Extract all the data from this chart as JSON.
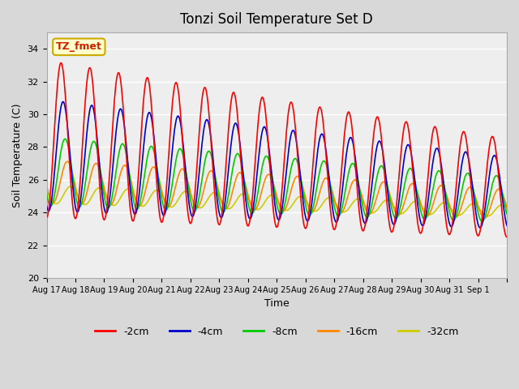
{
  "title": "Tonzi Soil Temperature Set D",
  "xlabel": "Time",
  "ylabel": "Soil Temperature (C)",
  "ylim": [
    20,
    35
  ],
  "yticks": [
    20,
    22,
    24,
    26,
    28,
    30,
    32,
    34
  ],
  "fig_bg_color": "#d8d8d8",
  "plot_bg_color": "#eeeeee",
  "annotation_text": "TZ_fmet",
  "annotation_bg": "#ffffcc",
  "annotation_border": "#ccaa00",
  "annotation_text_color": "#cc2200",
  "legend_labels": [
    "-2cm",
    "-4cm",
    "-8cm",
    "-16cm",
    "-32cm"
  ],
  "line_colors": [
    "#ff0000",
    "#0000cc",
    "#00cc00",
    "#ff8800",
    "#cccc00"
  ],
  "xtick_positions": [
    0,
    1,
    2,
    3,
    4,
    5,
    6,
    7,
    8,
    9,
    10,
    11,
    12,
    13,
    14,
    15,
    16
  ],
  "xtick_labels": [
    "Aug 17",
    "Aug 18",
    "Aug 19",
    "Aug 20",
    "Aug 21",
    "Aug 22",
    "Aug 23",
    "Aug 24",
    "Aug 25",
    "Aug 26",
    "Aug 27",
    "Aug 28",
    "Aug 29",
    "Aug 30",
    "Aug 31",
    "Sep 1",
    ""
  ],
  "num_days": 16
}
